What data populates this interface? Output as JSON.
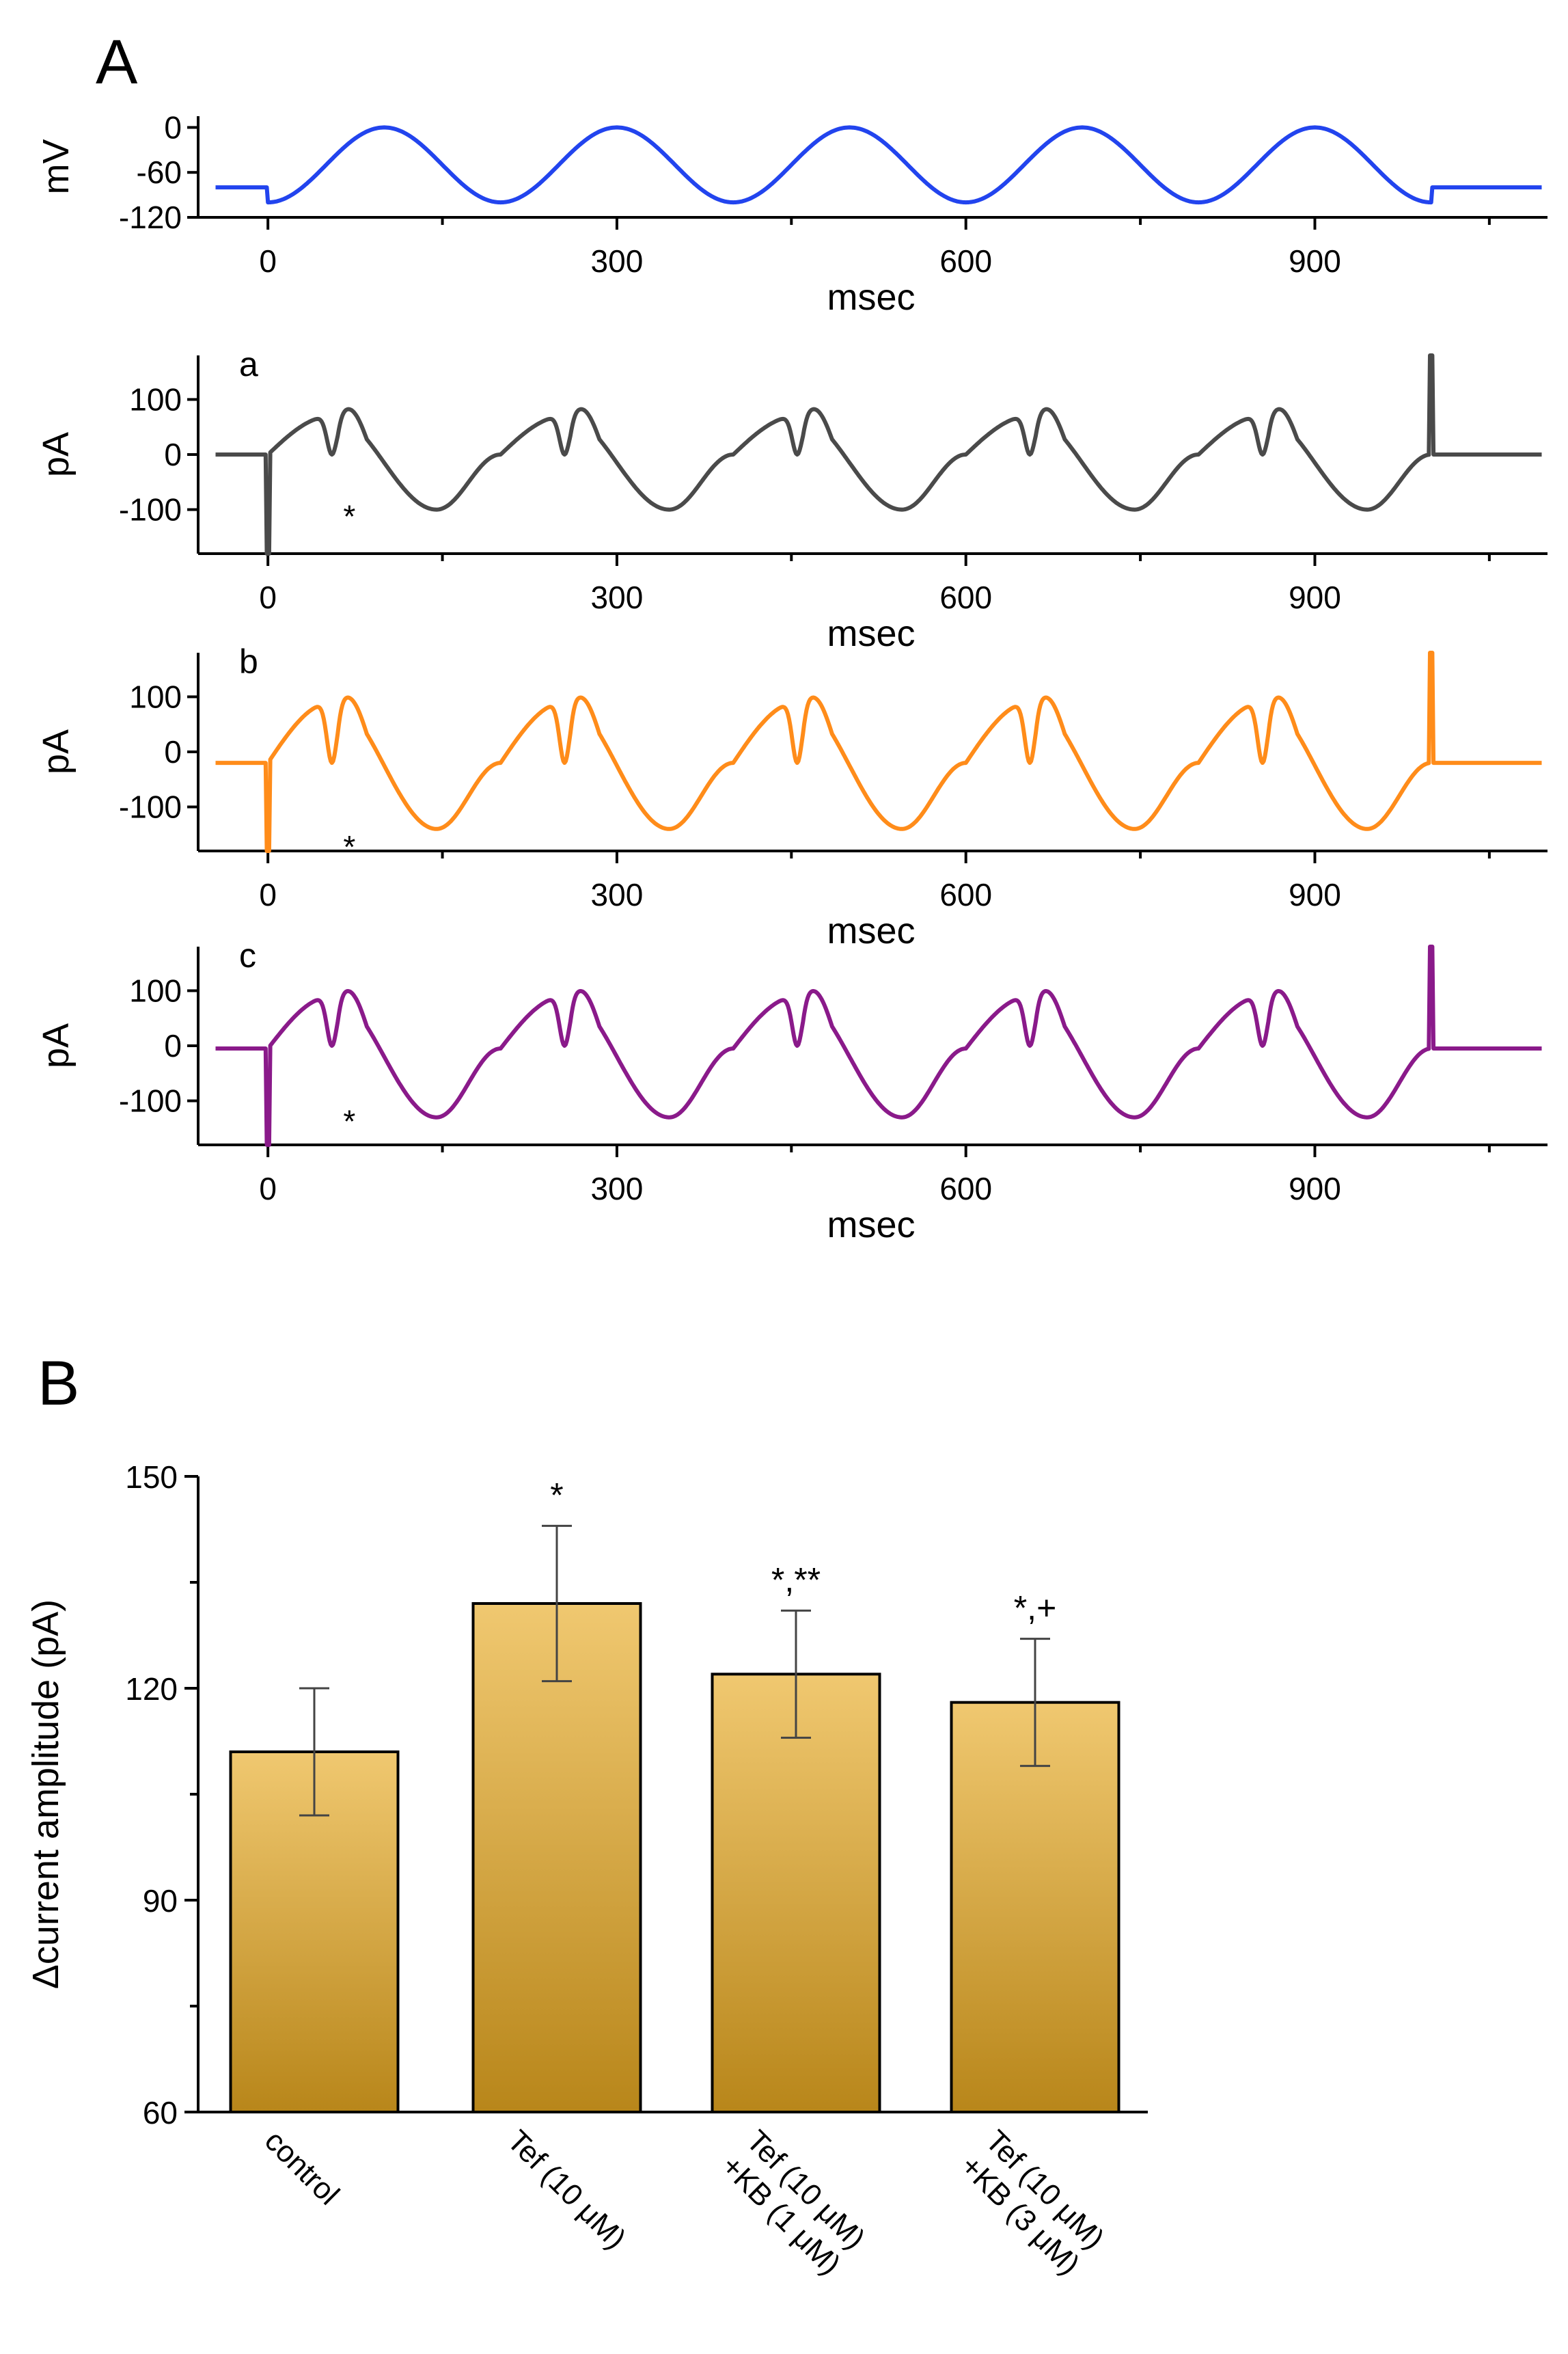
{
  "panel_a": {
    "letter": "A",
    "traces": [
      {
        "trace_label": "",
        "color": "#2244ee",
        "ylabel": "mV",
        "xlabel": "msec",
        "xlim": [
          -60,
          1100
        ],
        "ylim": [
          -120,
          15
        ],
        "yticks": [
          0,
          -60,
          -120
        ],
        "xticks": [
          0,
          300,
          600,
          900
        ],
        "type": "voltage",
        "holding": -80,
        "sine_amp": 50,
        "sine_offset": -50,
        "period": 200,
        "step_start": 0,
        "step_end": 1000
      },
      {
        "trace_label": "a",
        "color": "#4a4a4a",
        "ylabel": "pA",
        "xlabel": "msec",
        "xlim": [
          -60,
          1100
        ],
        "ylim": [
          -180,
          180
        ],
        "yticks": [
          100,
          0,
          -100
        ],
        "xticks": [
          0,
          300,
          600,
          900
        ],
        "type": "current",
        "baseline": 0,
        "peak": 70,
        "trough": -100,
        "notch_depth": 70,
        "marker": "*"
      },
      {
        "trace_label": "b",
        "color": "#ff8c1a",
        "ylabel": "pA",
        "xlabel": "msec",
        "xlim": [
          -60,
          1100
        ],
        "ylim": [
          -180,
          180
        ],
        "yticks": [
          100,
          0,
          -100
        ],
        "xticks": [
          0,
          300,
          600,
          900
        ],
        "type": "current",
        "baseline": -20,
        "peak": 90,
        "trough": -140,
        "notch_depth": 110,
        "marker": "*"
      },
      {
        "trace_label": "c",
        "color": "#8a1a8a",
        "ylabel": "pA",
        "xlabel": "msec",
        "xlim": [
          -60,
          1100
        ],
        "ylim": [
          -180,
          180
        ],
        "yticks": [
          100,
          0,
          -100
        ],
        "xticks": [
          0,
          300,
          600,
          900
        ],
        "type": "current",
        "baseline": -5,
        "peak": 90,
        "trough": -130,
        "notch_depth": 90,
        "marker": "*"
      }
    ]
  },
  "panel_b": {
    "letter": "B",
    "ylabel": "Δcurrent amplitude (pA)",
    "ylim": [
      60,
      150
    ],
    "yticks": [
      60,
      90,
      120,
      150
    ]
  },
  "chart_data": {
    "type": "bar",
    "categories": [
      "control",
      "Tef (10 μM)",
      "Tef (10 μM)\n+KB (1 μM)",
      "Tef (10 μM)\n+KB (3 μM)"
    ],
    "values": [
      111,
      132,
      122,
      118
    ],
    "errors": [
      9,
      11,
      9,
      9
    ],
    "significance": [
      "",
      "*",
      "*,**",
      "*,+"
    ],
    "ylabel": "Δcurrent amplitude (pA)",
    "ylim": [
      60,
      150
    ],
    "bar_color_top": "#f0c870",
    "bar_color_bottom": "#b8861a",
    "grid": false
  }
}
